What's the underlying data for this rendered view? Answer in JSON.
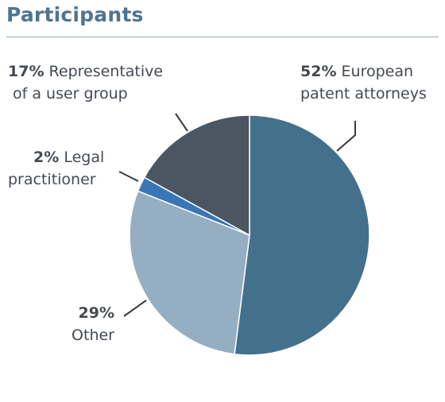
{
  "header": {
    "title": "Participants"
  },
  "chart_data": {
    "type": "pie",
    "title": "Participants",
    "start_angle_deg": 0,
    "direction": "clockwise",
    "slices": [
      {
        "label": "European patent attorneys",
        "value": 52,
        "pct_text": "52%",
        "line1": "European",
        "line2": "patent attorneys",
        "color": "#43718c"
      },
      {
        "label": "Other",
        "value": 29,
        "pct_text": "29%",
        "line1": "",
        "line2": "Other",
        "color": "#95aec2"
      },
      {
        "label": "Legal practitioner",
        "value": 2,
        "pct_text": "2%",
        "line1": "Legal",
        "line2": "practitioner",
        "color": "#3a75b6"
      },
      {
        "label": "Representative of a user group",
        "value": 17,
        "pct_text": "17%",
        "line1": "Representative",
        "line2": "of a user group",
        "color": "#4b5663"
      }
    ],
    "leader_color": "#333a42"
  }
}
